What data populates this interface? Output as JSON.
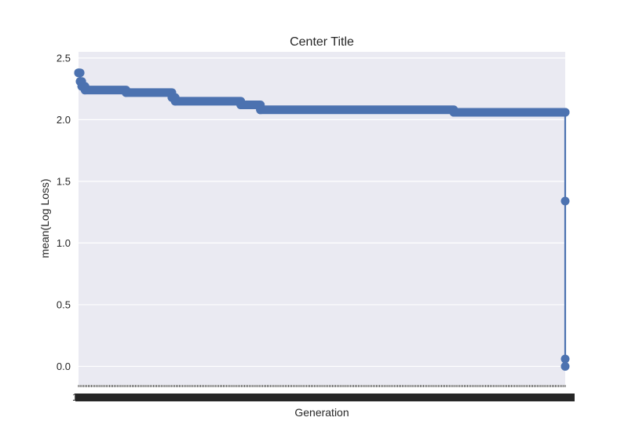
{
  "chart_data": {
    "type": "line",
    "title": "Center Title",
    "xlabel": "Generation",
    "ylabel": "mean(Log Loss)",
    "ylim": [
      -0.15,
      2.55
    ],
    "yticks": [
      0.0,
      0.5,
      1.0,
      1.5,
      2.0,
      2.5
    ],
    "ytick_labels": [
      "0.0",
      "0.5",
      "1.0",
      "1.5",
      "2.0",
      "2.5"
    ],
    "grid": true,
    "x_tick_labels_overlapping": true,
    "x_first_tick_label": "1",
    "n_generations": 300,
    "step_series": [
      {
        "from": 1,
        "to": 2,
        "value": 2.38
      },
      {
        "from": 2,
        "to": 3,
        "value": 2.31
      },
      {
        "from": 3,
        "to": 5,
        "value": 2.27
      },
      {
        "from": 5,
        "to": 30,
        "value": 2.24
      },
      {
        "from": 30,
        "to": 58,
        "value": 2.22
      },
      {
        "from": 58,
        "to": 60,
        "value": 2.18
      },
      {
        "from": 60,
        "to": 100,
        "value": 2.15
      },
      {
        "from": 100,
        "to": 112,
        "value": 2.12
      },
      {
        "from": 112,
        "to": 230,
        "value": 2.08
      },
      {
        "from": 230,
        "to": 298,
        "value": 2.06
      }
    ],
    "final_points": [
      {
        "x": 298,
        "y": 2.06
      },
      {
        "x": 298,
        "y": 1.34
      },
      {
        "x": 298,
        "y": 0.06
      },
      {
        "x": 298,
        "y": 0.0
      }
    ],
    "colors": {
      "series": "#4c72b0",
      "plot_bg": "#eaeaf2",
      "grid": "#ffffff",
      "text": "#262626",
      "tick_mark": "#262626"
    }
  }
}
